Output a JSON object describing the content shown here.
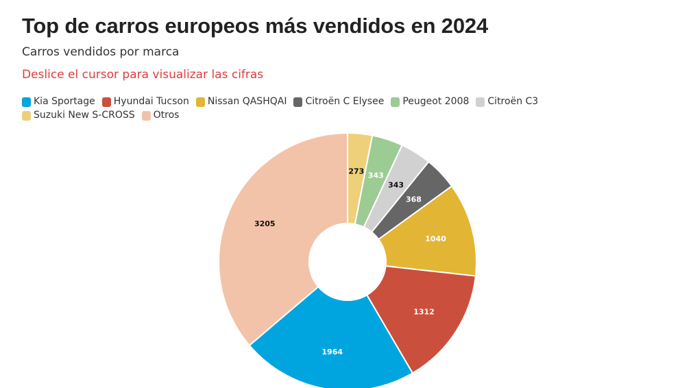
{
  "header": {
    "title": "Top de carros europeos más vendidos en 2024",
    "subtitle": "Carros vendidos por marca",
    "hint": "Deslice el cursor para visualizar las cifras"
  },
  "chart_data": {
    "type": "pie",
    "variant": "donut",
    "title": "Top de carros europeos más vendidos en 2024",
    "subtitle": "Carros vendidos por marca",
    "legend_position": "top",
    "slices": [
      {
        "name": "Kia Sportage",
        "value": 1964,
        "color": "#00a5df",
        "label_color": "#ffffff"
      },
      {
        "name": "Hyundai Tucson",
        "value": 1312,
        "color": "#cb4f3d",
        "label_color": "#ffffff"
      },
      {
        "name": "Nissan QASHQAI",
        "value": 1040,
        "color": "#e2b535",
        "label_color": "#ffffff"
      },
      {
        "name": "Citroën C Elysee",
        "value": 368,
        "color": "#666666",
        "label_color": "#ffffff"
      },
      {
        "name": "Peugeot 2008",
        "value": 343,
        "color": "#9ccc94",
        "label_color": "#ffffff"
      },
      {
        "name": "Citroën C3",
        "value": 343,
        "color": "#d1d1d1",
        "label_color": "#111111"
      },
      {
        "name": "Suzuki New S-CROSS",
        "value": 273,
        "color": "#eed07b",
        "label_color": "#111111"
      },
      {
        "name": "Otros",
        "value": 3205,
        "color": "#f2c3a9",
        "label_color": "#111111"
      }
    ],
    "draw_order": [
      "Suzuki New S-CROSS",
      "Peugeot 2008",
      "Citroën C3",
      "Citroën C Elysee",
      "Nissan QASHQAI",
      "Hyundai Tucson",
      "Kia Sportage",
      "Otros"
    ]
  }
}
